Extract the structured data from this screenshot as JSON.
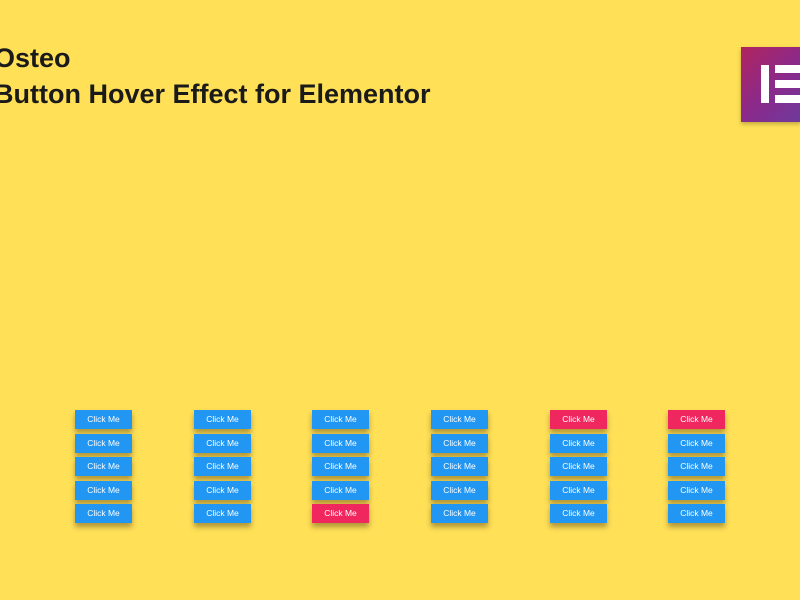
{
  "title": {
    "line1": "Osteo",
    "line2": "Button Hover Effect for Elementor"
  },
  "logo": {
    "name": "elementor-logo-icon"
  },
  "colors": {
    "background": "#FFE057",
    "button": "#2196F3",
    "button_hover": "#F0275E",
    "text": "#1a1a1a"
  },
  "columns": [
    {
      "buttons": [
        {
          "label": "Click Me",
          "state": "normal"
        },
        {
          "label": "Click Me",
          "state": "normal"
        },
        {
          "label": "Click Me",
          "state": "normal"
        },
        {
          "label": "Click Me",
          "state": "normal"
        },
        {
          "label": "Click Me",
          "state": "normal"
        }
      ]
    },
    {
      "buttons": [
        {
          "label": "Click Me",
          "state": "normal"
        },
        {
          "label": "Click Me",
          "state": "normal"
        },
        {
          "label": "Click Me",
          "state": "normal"
        },
        {
          "label": "Click Me",
          "state": "normal"
        },
        {
          "label": "Click Me",
          "state": "normal"
        }
      ]
    },
    {
      "buttons": [
        {
          "label": "Click Me",
          "state": "normal"
        },
        {
          "label": "Click Me",
          "state": "normal"
        },
        {
          "label": "Click Me",
          "state": "normal"
        },
        {
          "label": "Click Me",
          "state": "normal"
        },
        {
          "label": "Click Me",
          "state": "hover"
        }
      ]
    },
    {
      "buttons": [
        {
          "label": "Click Me",
          "state": "normal"
        },
        {
          "label": "Click Me",
          "state": "normal"
        },
        {
          "label": "Click Me",
          "state": "normal"
        },
        {
          "label": "Click Me",
          "state": "normal"
        },
        {
          "label": "Click Me",
          "state": "normal"
        }
      ]
    },
    {
      "buttons": [
        {
          "label": "Click Me",
          "state": "hover"
        },
        {
          "label": "Click Me",
          "state": "normal"
        },
        {
          "label": "Click Me",
          "state": "normal"
        },
        {
          "label": "Click Me",
          "state": "normal"
        },
        {
          "label": "Click Me",
          "state": "normal"
        }
      ]
    },
    {
      "buttons": [
        {
          "label": "Click Me",
          "state": "hover"
        },
        {
          "label": "Click Me",
          "state": "normal"
        },
        {
          "label": "Click Me",
          "state": "normal"
        },
        {
          "label": "Click Me",
          "state": "normal"
        },
        {
          "label": "Click Me",
          "state": "normal"
        }
      ]
    }
  ]
}
